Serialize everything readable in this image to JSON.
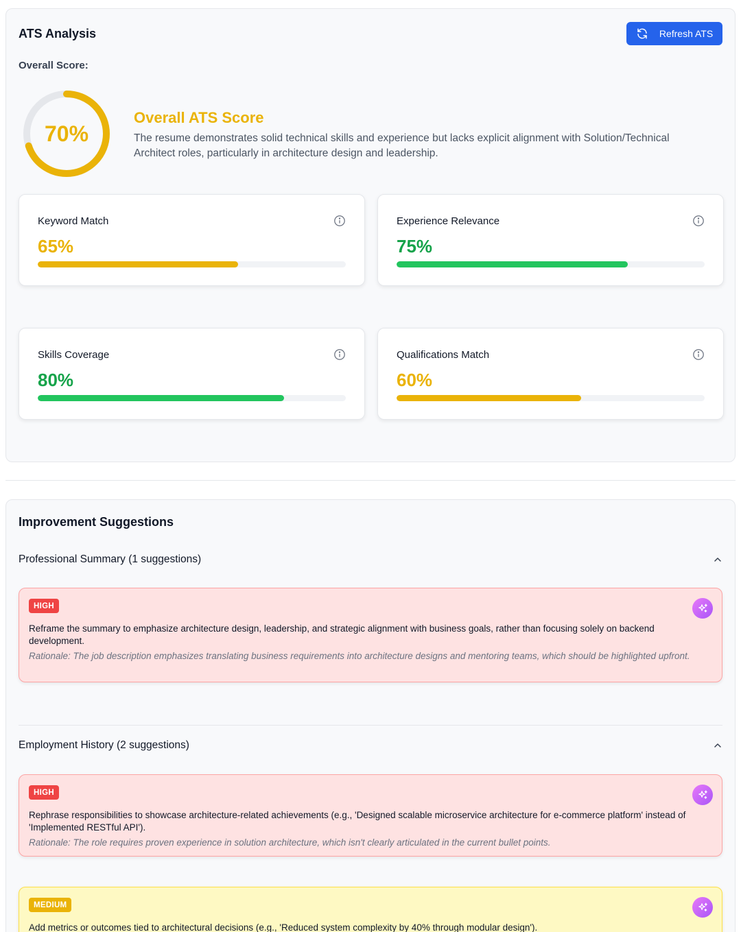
{
  "ats": {
    "title": "ATS Analysis",
    "refresh_label": "Refresh ATS",
    "overall_label": "Overall Score:",
    "overall_score": 70,
    "overall_score_text": "70%",
    "score_heading": "Overall ATS Score",
    "score_description": "The resume demonstrates solid technical skills and experience but lacks explicit alignment with Solution/Technical Architect roles, particularly in architecture design and leadership.",
    "metrics": [
      {
        "label": "Keyword Match",
        "value": 65,
        "value_text": "65%",
        "color": "#eab308",
        "text_color": "#eab308"
      },
      {
        "label": "Experience Relevance",
        "value": 75,
        "value_text": "75%",
        "color": "#22c55e",
        "text_color": "#16a34a"
      },
      {
        "label": "Skills Coverage",
        "value": 80,
        "value_text": "80%",
        "color": "#22c55e",
        "text_color": "#16a34a"
      },
      {
        "label": "Qualifications Match",
        "value": 60,
        "value_text": "60%",
        "color": "#eab308",
        "text_color": "#eab308"
      }
    ],
    "colors": {
      "ring": "#eab308",
      "ring_track": "#e5e7eb",
      "accent": "#2563eb"
    }
  },
  "suggestions": {
    "title": "Improvement Suggestions",
    "sections": [
      {
        "label": "Professional Summary (1 suggestions)",
        "items": [
          {
            "priority": "HIGH",
            "text": "Reframe the summary to emphasize architecture design, leadership, and strategic alignment with business goals, rather than focusing solely on backend development.",
            "rationale": "Rationale: The job description emphasizes translating business requirements into architecture designs and mentoring teams, which should be highlighted upfront."
          }
        ]
      },
      {
        "label": "Employment History (2 suggestions)",
        "items": [
          {
            "priority": "HIGH",
            "text": "Rephrase responsibilities to showcase architecture-related achievements (e.g., 'Designed scalable microservice architecture for e-commerce platform' instead of 'Implemented RESTful API').",
            "rationale": "Rationale: The role requires proven experience in solution architecture, which isn't clearly articulated in the current bullet points."
          },
          {
            "priority": "MEDIUM",
            "text": "Add metrics or outcomes tied to architectural decisions (e.g., 'Reduced system complexity by 40% through modular design').",
            "rationale": ""
          }
        ]
      }
    ]
  },
  "icons": {
    "refresh": "refresh-icon",
    "info": "info-icon",
    "chevron": "chevron-up-icon",
    "ai": "sparkles-icon"
  }
}
